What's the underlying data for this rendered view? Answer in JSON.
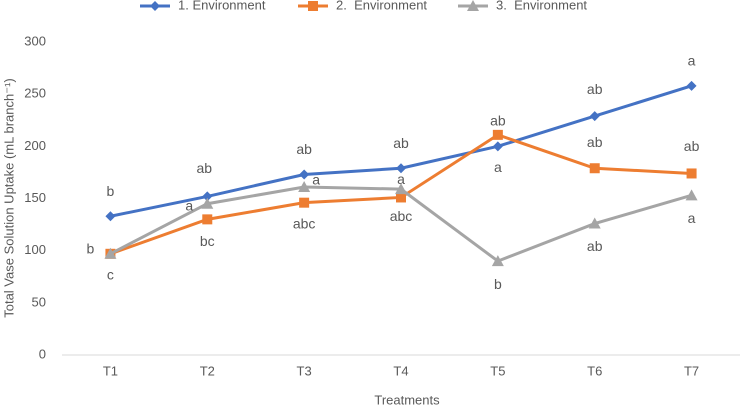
{
  "chart_data": {
    "type": "line",
    "y_label": "Total Vase Solution Uptake (mL branch⁻¹)",
    "x_label": "Treatments",
    "categories": [
      "T1",
      "T2",
      "T3",
      "T4",
      "T5",
      "T6",
      "T7"
    ],
    "series": [
      {
        "name": "1. Environment",
        "color": "#4472c4",
        "marker": "diamond",
        "values": [
          133,
          152,
          173,
          179,
          200,
          229,
          258
        ],
        "annotations": [
          "b",
          "ab",
          "ab",
          "ab",
          "a",
          "ab",
          "a"
        ]
      },
      {
        "name": "2.  Environment",
        "color": "#ed7d31",
        "marker": "square",
        "values": [
          97,
          130,
          146,
          151,
          211,
          179,
          174
        ],
        "annotations": [
          "c",
          "bc",
          "abc",
          "abc",
          "ab",
          "ab",
          "ab"
        ]
      },
      {
        "name": "3.  Environment",
        "color": "#a5a5a5",
        "marker": "triangle",
        "values": [
          97,
          145,
          161,
          159,
          90,
          126,
          153
        ],
        "annotations": [
          "b",
          "a",
          "a",
          "a",
          "b",
          "ab",
          "a"
        ]
      }
    ],
    "ylim": [
      0,
      300
    ],
    "yticks": [
      0,
      50,
      100,
      150,
      200,
      250,
      300
    ],
    "grid": false
  }
}
